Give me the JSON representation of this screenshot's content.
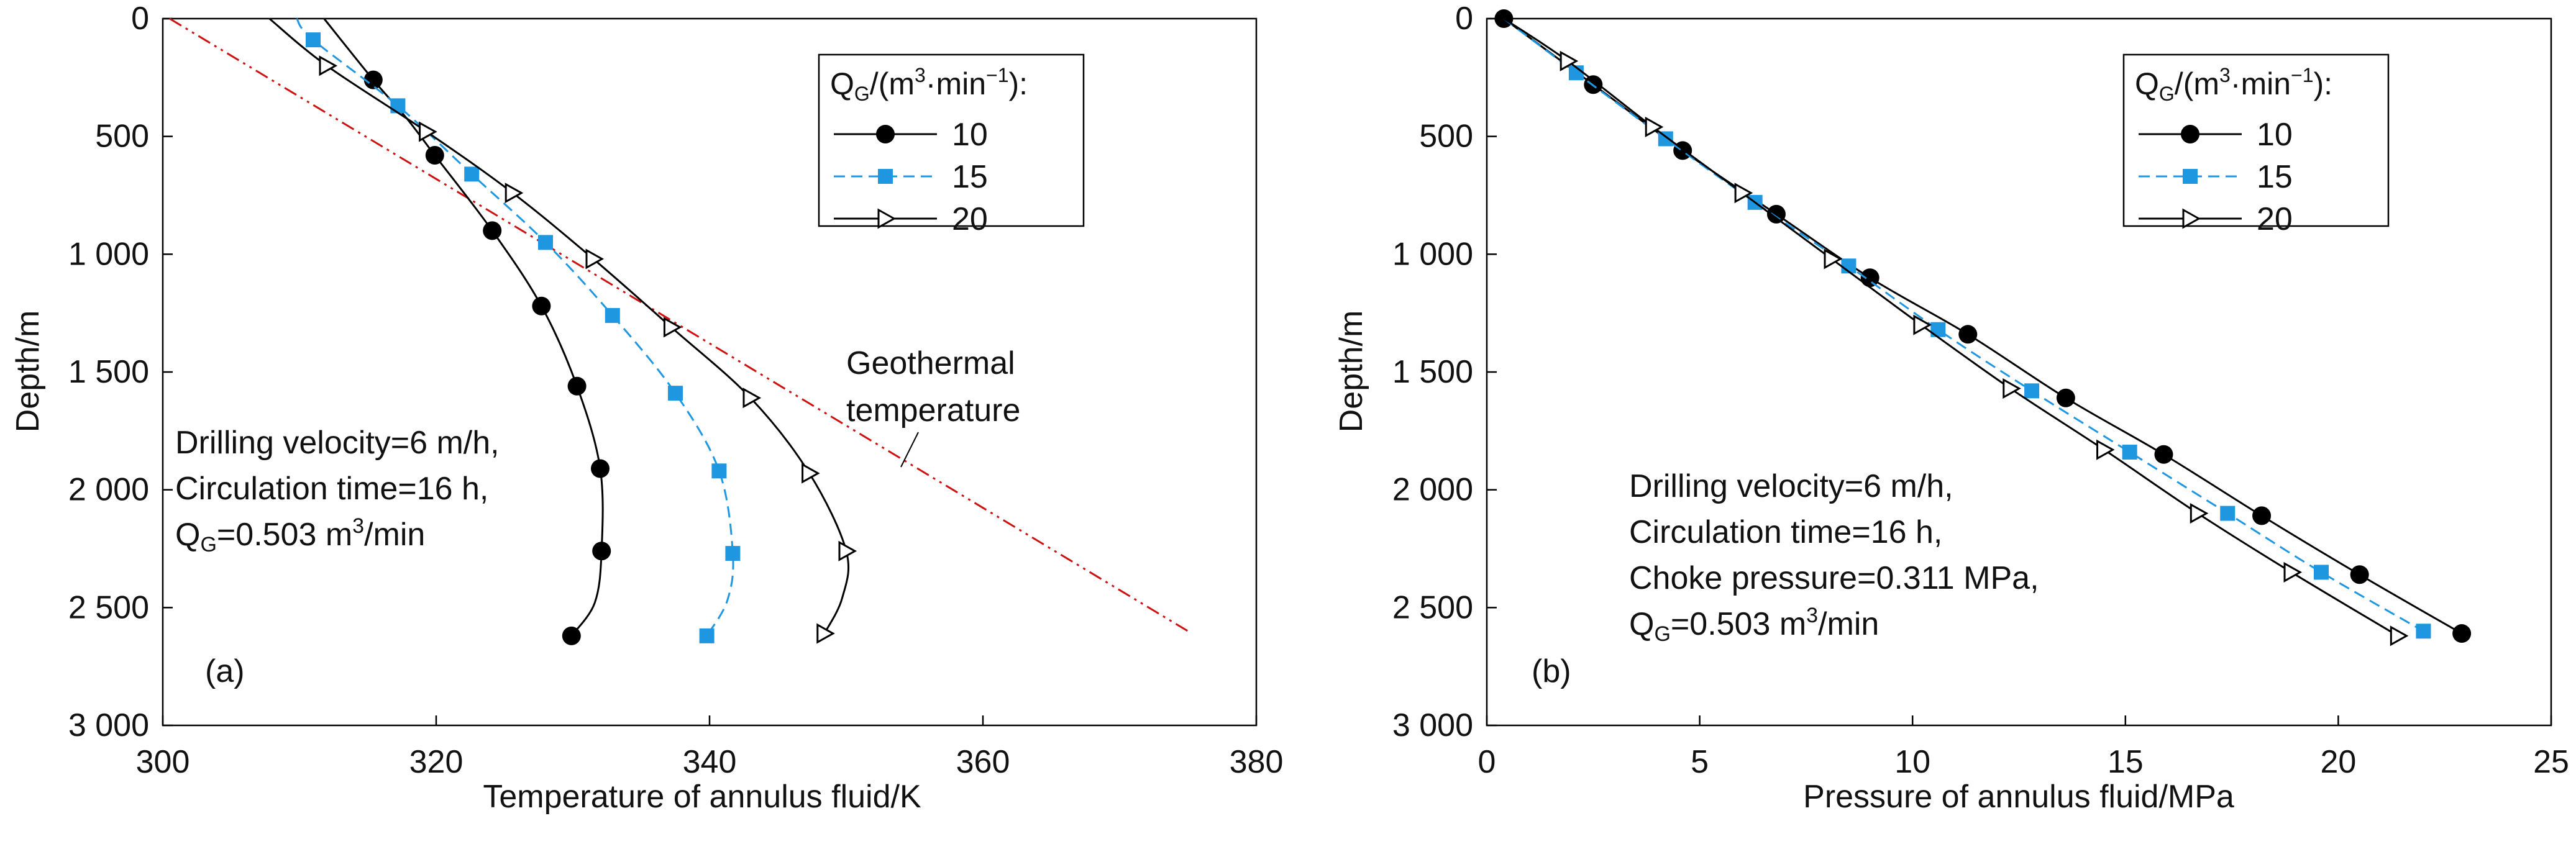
{
  "chart_data": [
    {
      "type": "line",
      "panel_label": "(a)",
      "xlabel": "Temperature of annulus fluid/K",
      "ylabel": "Depth/m",
      "xlim": [
        300,
        380
      ],
      "ylim": [
        0,
        3000
      ],
      "y_inverted": true,
      "x_ticks": [
        "300",
        "320",
        "340",
        "360",
        "380"
      ],
      "y_ticks": [
        "0",
        "500",
        "1 000",
        "1 500",
        "2 000",
        "2 500",
        "3 000"
      ],
      "legend": {
        "title_base": "Q",
        "title_sub": "G",
        "title_rest": "/(m",
        "title_sup1": "3",
        "title_mid": "·min",
        "title_sup2": "−1",
        "title_end": "):",
        "placement": "top-right"
      },
      "annotation": {
        "lines": [
          "Drilling velocity=6 m/h,",
          "Circulation time=16 h,"
        ],
        "last_base": "Q",
        "last_sub": "G",
        "last_mid": "=0.503 m",
        "last_sup": "3",
        "last_end": "/min"
      },
      "geothermal": {
        "label_line1": "Geothermal",
        "label_line2": "temperature",
        "color": "#cc1111",
        "x": [
          300.5,
          375
        ],
        "y": [
          0,
          2600
        ]
      },
      "series": [
        {
          "name": "10",
          "color": "#000000",
          "marker": "circle",
          "dash": "",
          "line_x": [
            311.8,
            315.4,
            317.8,
            319.9,
            324.1,
            327.7,
            330.3,
            332.0,
            332.1,
            331.6,
            329.9
          ],
          "line_y": [
            0,
            260,
            420,
            580,
            900,
            1220,
            1560,
            1910,
            2260,
            2480,
            2620
          ],
          "markers_x": [
            315.4,
            319.9,
            324.1,
            327.7,
            330.3,
            332.0,
            332.1,
            329.9
          ],
          "markers_y": [
            260,
            580,
            900,
            1220,
            1560,
            1910,
            2260,
            2620
          ]
        },
        {
          "name": "15",
          "color": "#1f97e0",
          "marker": "square",
          "dash": "18,10",
          "line_x": [
            309.8,
            311.0,
            317.2,
            322.6,
            328.0,
            332.9,
            337.5,
            340.7,
            341.7,
            341.3,
            339.8
          ],
          "line_y": [
            0,
            90,
            370,
            660,
            950,
            1260,
            1590,
            1920,
            2270,
            2470,
            2620
          ],
          "markers_x": [
            311.0,
            317.2,
            322.6,
            328.0,
            332.9,
            337.5,
            340.7,
            341.7,
            339.8
          ],
          "markers_y": [
            90,
            370,
            660,
            950,
            1260,
            1590,
            1920,
            2270,
            2620
          ]
        },
        {
          "name": "20",
          "color": "#000000",
          "marker": "triangle",
          "dash": "",
          "line_x": [
            307.8,
            312.0,
            319.3,
            325.6,
            331.5,
            337.2,
            343.0,
            347.3,
            350.0,
            349.7,
            348.4
          ],
          "line_y": [
            0,
            200,
            480,
            740,
            1020,
            1310,
            1610,
            1930,
            2260,
            2460,
            2610
          ],
          "markers_x": [
            312.0,
            319.3,
            325.6,
            331.5,
            337.2,
            343.0,
            347.3,
            350.0,
            348.4
          ],
          "markers_y": [
            200,
            480,
            740,
            1020,
            1310,
            1610,
            1930,
            2260,
            2610
          ]
        }
      ]
    },
    {
      "type": "line",
      "panel_label": "(b)",
      "xlabel": "Pressure of annulus fluid/MPa",
      "ylabel": "Depth/m",
      "xlim": [
        0,
        25
      ],
      "ylim": [
        0,
        3000
      ],
      "y_inverted": true,
      "x_ticks": [
        "0",
        "5",
        "10",
        "15",
        "20",
        "25"
      ],
      "y_ticks": [
        "0",
        "500",
        "1 000",
        "1 500",
        "2 000",
        "2 500",
        "3 000"
      ],
      "legend": {
        "title_base": "Q",
        "title_sub": "G",
        "title_rest": "/(m",
        "title_sup1": "3",
        "title_mid": "·min",
        "title_sup2": "−1",
        "title_end": "):",
        "placement": "top-right"
      },
      "annotation": {
        "lines": [
          "Drilling velocity=6 m/h,",
          "Circulation time=16 h,",
          "Choke pressure=0.311 MPa,"
        ],
        "last_base": "Q",
        "last_sub": "G",
        "last_mid": "=0.503 m",
        "last_sup": "3",
        "last_end": "/min"
      },
      "series": [
        {
          "name": "10",
          "color": "#000000",
          "marker": "circle",
          "dash": "",
          "line_x": [
            0.4,
            2.5,
            4.6,
            6.8,
            9.0,
            11.3,
            13.6,
            15.9,
            18.2,
            20.5,
            22.9
          ],
          "line_y": [
            0,
            280,
            560,
            830,
            1100,
            1340,
            1610,
            1850,
            2110,
            2360,
            2610
          ],
          "markers_x": [
            0.4,
            2.5,
            4.6,
            6.8,
            9.0,
            11.3,
            13.6,
            15.9,
            18.2,
            20.5,
            22.9
          ],
          "markers_y": [
            0,
            280,
            560,
            830,
            1100,
            1340,
            1610,
            1850,
            2110,
            2360,
            2610
          ]
        },
        {
          "name": "15",
          "color": "#1f97e0",
          "marker": "square",
          "dash": "18,10",
          "line_x": [
            0.4,
            2.1,
            4.2,
            6.3,
            8.5,
            10.6,
            12.8,
            15.1,
            17.4,
            19.6,
            22.0
          ],
          "line_y": [
            0,
            230,
            510,
            780,
            1050,
            1320,
            1580,
            1840,
            2100,
            2350,
            2600
          ],
          "markers_x": [
            2.1,
            4.2,
            6.3,
            8.5,
            10.6,
            12.8,
            15.1,
            17.4,
            19.6,
            22.0
          ],
          "markers_y": [
            230,
            510,
            780,
            1050,
            1320,
            1580,
            1840,
            2100,
            2350,
            2600
          ]
        },
        {
          "name": "20",
          "color": "#000000",
          "marker": "triangle",
          "dash": "",
          "line_x": [
            0.4,
            1.9,
            3.9,
            6.0,
            8.1,
            10.2,
            12.3,
            14.5,
            16.7,
            18.9,
            21.4
          ],
          "line_y": [
            0,
            180,
            460,
            740,
            1020,
            1300,
            1570,
            1830,
            2100,
            2350,
            2620
          ],
          "markers_x": [
            1.9,
            3.9,
            6.0,
            8.1,
            10.2,
            12.3,
            14.5,
            16.7,
            18.9,
            21.4
          ],
          "markers_y": [
            180,
            460,
            740,
            1020,
            1300,
            1570,
            1830,
            2100,
            2350,
            2620
          ]
        }
      ]
    }
  ]
}
